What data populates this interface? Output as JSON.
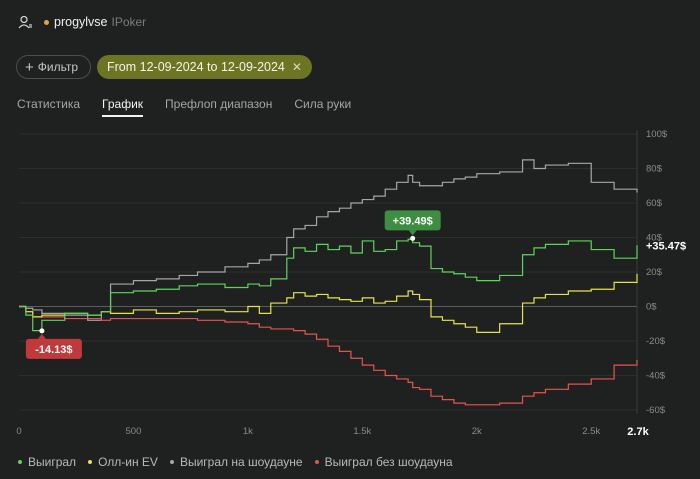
{
  "header": {
    "username": "progylvse",
    "room": "IPoker",
    "status_color": "#e8a23a"
  },
  "filter": {
    "label": "Фильтр",
    "date_range": "From 12-09-2024 to 12-09-2024"
  },
  "tabs": [
    {
      "label": "Статистика",
      "active": false
    },
    {
      "label": "График",
      "active": true
    },
    {
      "label": "Префлоп диапазон",
      "active": false
    },
    {
      "label": "Сила руки",
      "active": false
    }
  ],
  "colors": {
    "won": "#5fd45a",
    "allin_ev": "#e8e24a",
    "showdown": "#a6a6a6",
    "non_showdown": "#e5544b"
  },
  "chart_data": {
    "type": "line",
    "x_ticks": [
      "0",
      "500",
      "1k",
      "1.5k",
      "2k",
      "2.5k"
    ],
    "x_max_label": "2.7k",
    "xlim": [
      0,
      2700
    ],
    "y_ticks": [
      "100$",
      "80$",
      "60$",
      "40$",
      "20$",
      "0$",
      "-20$",
      "-40$",
      "-60$"
    ],
    "ylim": [
      -60,
      100
    ],
    "grid": true,
    "legend_position": "bottom-left",
    "series": [
      {
        "key": "won",
        "name": "Выиграл",
        "x": [
          0,
          30,
          60,
          100,
          200,
          300,
          360,
          400,
          500,
          600,
          700,
          780,
          900,
          1000,
          1050,
          1100,
          1170,
          1200,
          1250,
          1300,
          1350,
          1400,
          1450,
          1500,
          1550,
          1600,
          1650,
          1700,
          1720,
          1750,
          1800,
          1850,
          1900,
          1950,
          2000,
          2100,
          2200,
          2250,
          2300,
          2400,
          2500,
          2600,
          2700
        ],
        "values": [
          0,
          -5,
          -14,
          -8,
          -4,
          -5,
          -3,
          8,
          9,
          10,
          12,
          13,
          11,
          13,
          12,
          16,
          28,
          34,
          32,
          36,
          33,
          35,
          31,
          38,
          32,
          33,
          38,
          39,
          37,
          35,
          22,
          20,
          19,
          17,
          15,
          18,
          30,
          34,
          36,
          38,
          33,
          28,
          35.5
        ]
      },
      {
        "key": "allin_ev",
        "name": "Олл-ин EV",
        "x": [
          0,
          30,
          60,
          100,
          200,
          300,
          360,
          400,
          500,
          600,
          700,
          780,
          900,
          1000,
          1050,
          1100,
          1170,
          1200,
          1250,
          1300,
          1350,
          1400,
          1450,
          1500,
          1550,
          1600,
          1650,
          1700,
          1720,
          1750,
          1800,
          1850,
          1900,
          1950,
          2000,
          2100,
          2200,
          2250,
          2300,
          2400,
          2500,
          2600,
          2700
        ],
        "values": [
          0,
          -3,
          -6,
          -5,
          -4,
          -5,
          -3,
          -4,
          -2,
          -4,
          -3,
          -2,
          -3,
          0,
          -4,
          2,
          5,
          8,
          6,
          7,
          5,
          4,
          3,
          5,
          2,
          3,
          6,
          9,
          7,
          4,
          -6,
          -8,
          -10,
          -12,
          -15,
          -10,
          2,
          5,
          7,
          9,
          10,
          14,
          19
        ]
      },
      {
        "key": "showdown",
        "name": "Выиграл на шоудауне",
        "x": [
          0,
          30,
          60,
          100,
          200,
          300,
          360,
          400,
          500,
          600,
          700,
          780,
          900,
          1000,
          1050,
          1100,
          1170,
          1200,
          1250,
          1300,
          1350,
          1400,
          1450,
          1500,
          1550,
          1600,
          1650,
          1700,
          1720,
          1750,
          1800,
          1850,
          1900,
          1950,
          2000,
          2100,
          2200,
          2250,
          2300,
          2400,
          2500,
          2600,
          2700
        ],
        "values": [
          0,
          -1,
          -2,
          -4,
          -5,
          -8,
          -3,
          13,
          15,
          16,
          18,
          20,
          23,
          25,
          27,
          30,
          40,
          45,
          47,
          52,
          55,
          57,
          60,
          62,
          64,
          68,
          72,
          76,
          72,
          70,
          70,
          72,
          74,
          75,
          77,
          78,
          85,
          80,
          82,
          83,
          72,
          68,
          66
        ]
      },
      {
        "key": "non_showdown",
        "name": "Выиграл без шоудауна",
        "x": [
          0,
          30,
          60,
          100,
          200,
          300,
          360,
          400,
          500,
          600,
          700,
          780,
          900,
          1000,
          1050,
          1100,
          1170,
          1200,
          1250,
          1300,
          1350,
          1400,
          1450,
          1500,
          1550,
          1600,
          1650,
          1700,
          1720,
          1750,
          1800,
          1850,
          1900,
          1950,
          2000,
          2100,
          2200,
          2250,
          2300,
          2400,
          2500,
          2600,
          2700
        ],
        "values": [
          0,
          -3,
          -6,
          -6,
          -7,
          -7,
          -8,
          -7,
          -7,
          -7,
          -7,
          -8,
          -9,
          -10,
          -12,
          -13,
          -13,
          -14,
          -16,
          -19,
          -23,
          -26,
          -30,
          -34,
          -37,
          -40,
          -42,
          -44,
          -47,
          -48,
          -52,
          -54,
          -56,
          -57,
          -57,
          -56,
          -52,
          -50,
          -48,
          -45,
          -42,
          -34,
          -31
        ]
      }
    ],
    "annotations": [
      {
        "text": "+39.49$",
        "x": 1720,
        "y": 39.49,
        "color": "#3e8e41",
        "placement": "above"
      },
      {
        "text": "-14.13$",
        "x": 100,
        "y": -14.13,
        "color": "#c0393b",
        "placement": "below"
      }
    ],
    "end_label": {
      "text": "+35.47$",
      "y": 35.47
    }
  },
  "legend": [
    {
      "label": "Выиграл",
      "color": "#5fd45a"
    },
    {
      "label": "Олл-ин EV",
      "color": "#e8e24a"
    },
    {
      "label": "Выиграл на шоудауне",
      "color": "#a6a6a6"
    },
    {
      "label": "Выиграл без шоудауна",
      "color": "#e5544b"
    }
  ]
}
